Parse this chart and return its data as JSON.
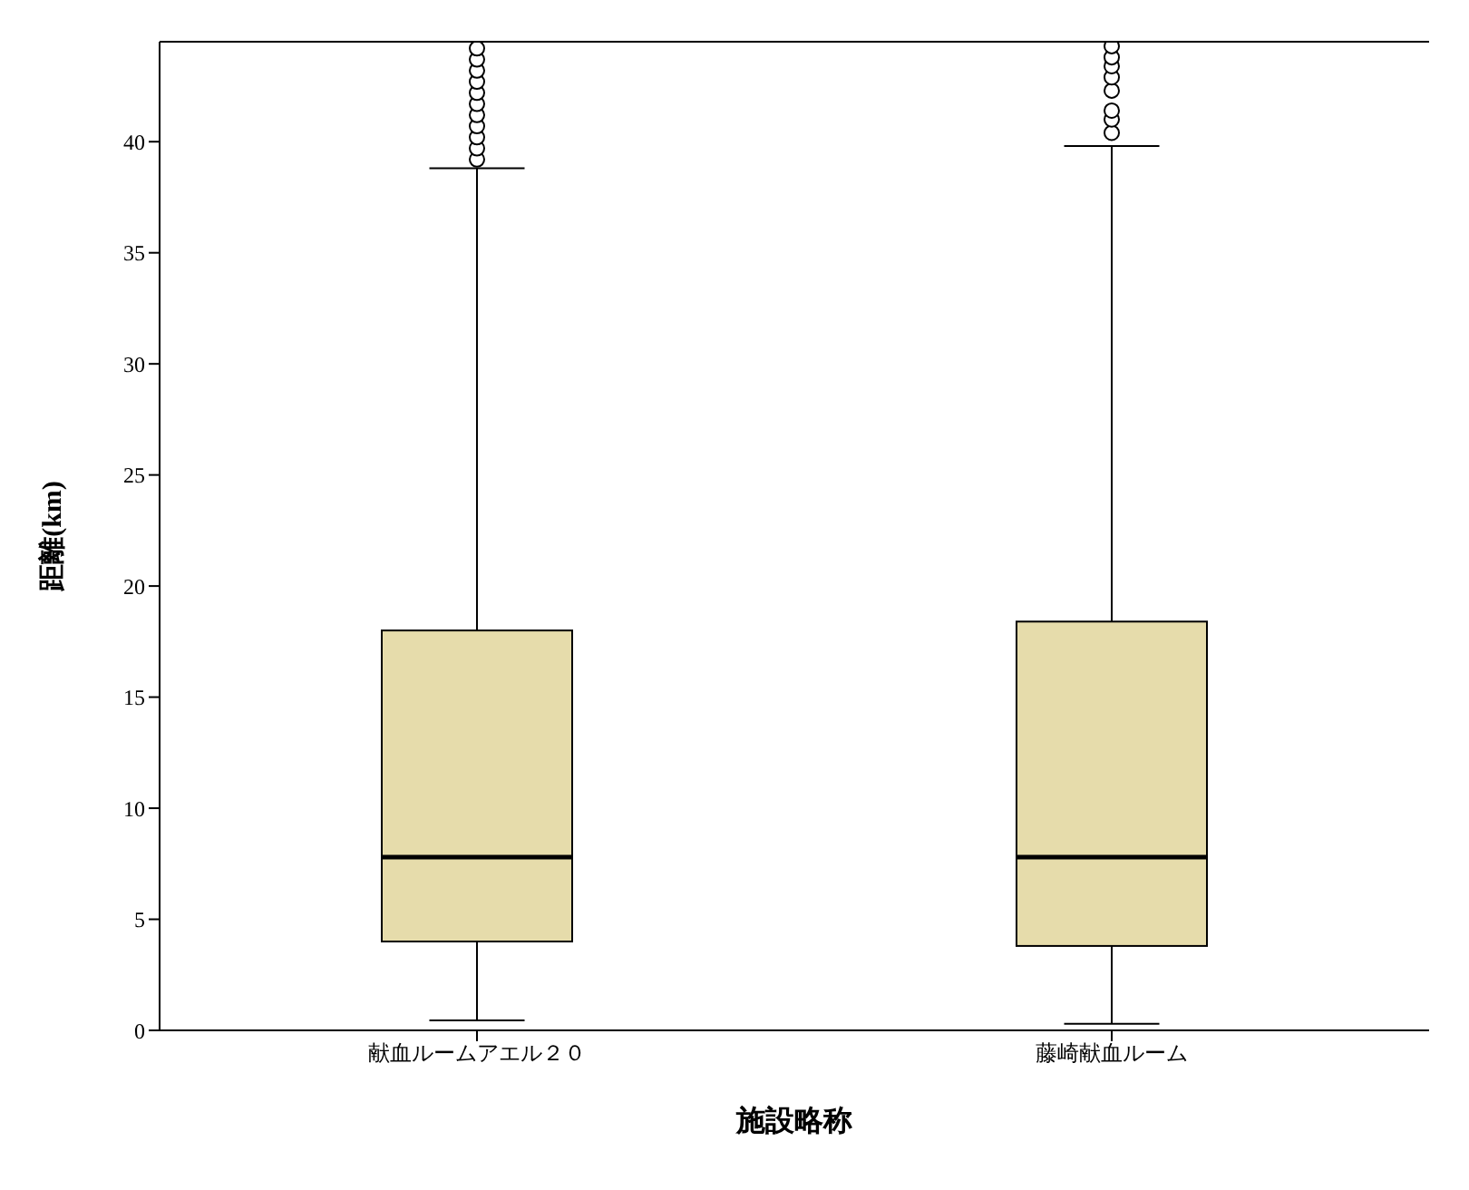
{
  "chart_data": {
    "type": "box",
    "xlabel": "施設略称",
    "ylabel": "距離(km)",
    "categories": [
      "献血ルームアエル２０",
      "藤崎献血ルーム"
    ],
    "color": "#e6dcab",
    "ylim": [
      0,
      44.5
    ],
    "yticks": [
      0,
      5,
      10,
      15,
      20,
      25,
      30,
      35,
      40
    ],
    "grid": false,
    "boxes": [
      {
        "low": 0.45,
        "q1": 4.0,
        "median": 7.8,
        "q3": 18.0,
        "high": 38.8,
        "outliers": [
          39.2,
          39.7,
          40.2,
          40.7,
          41.2,
          41.7,
          42.2,
          42.7,
          43.2,
          43.7,
          44.2
        ]
      },
      {
        "low": 0.3,
        "q1": 3.8,
        "median": 7.8,
        "q3": 18.4,
        "high": 39.8,
        "outliers": [
          40.4,
          41.0,
          41.4,
          42.3,
          42.9,
          43.4,
          43.8,
          44.3
        ]
      }
    ]
  }
}
